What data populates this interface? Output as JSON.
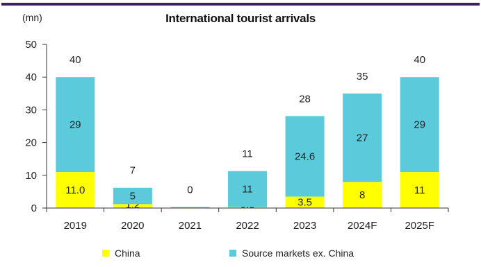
{
  "chart_data": {
    "type": "bar",
    "stacked": true,
    "title": "International tourist arrivals",
    "ylabel": "(mn)",
    "xlabel": "",
    "ylim": [
      0,
      50
    ],
    "yticks": [
      0,
      10,
      20,
      30,
      40,
      50
    ],
    "categories": [
      "2019",
      "2020",
      "2021",
      "2022",
      "2023",
      "2024F",
      "2025F"
    ],
    "series": [
      {
        "name": "China",
        "color": "#ffff00",
        "values": [
          11.0,
          1.2,
          0,
          0.3,
          3.5,
          8,
          11
        ],
        "labels": [
          "11.0",
          "1.2",
          "",
          "0.3",
          "3.5",
          "8",
          "11"
        ]
      },
      {
        "name": "Source markets ex. China",
        "color": "#5bcbdb",
        "values": [
          29,
          5,
          0.3,
          11,
          24.6,
          27,
          29
        ],
        "labels": [
          "29",
          "5",
          "",
          "11",
          "24.6",
          "27",
          "29"
        ]
      }
    ],
    "totals": [
      "40",
      "7",
      "0",
      "11",
      "28",
      "35",
      "40"
    ],
    "grid": false,
    "legend_position": "bottom"
  }
}
